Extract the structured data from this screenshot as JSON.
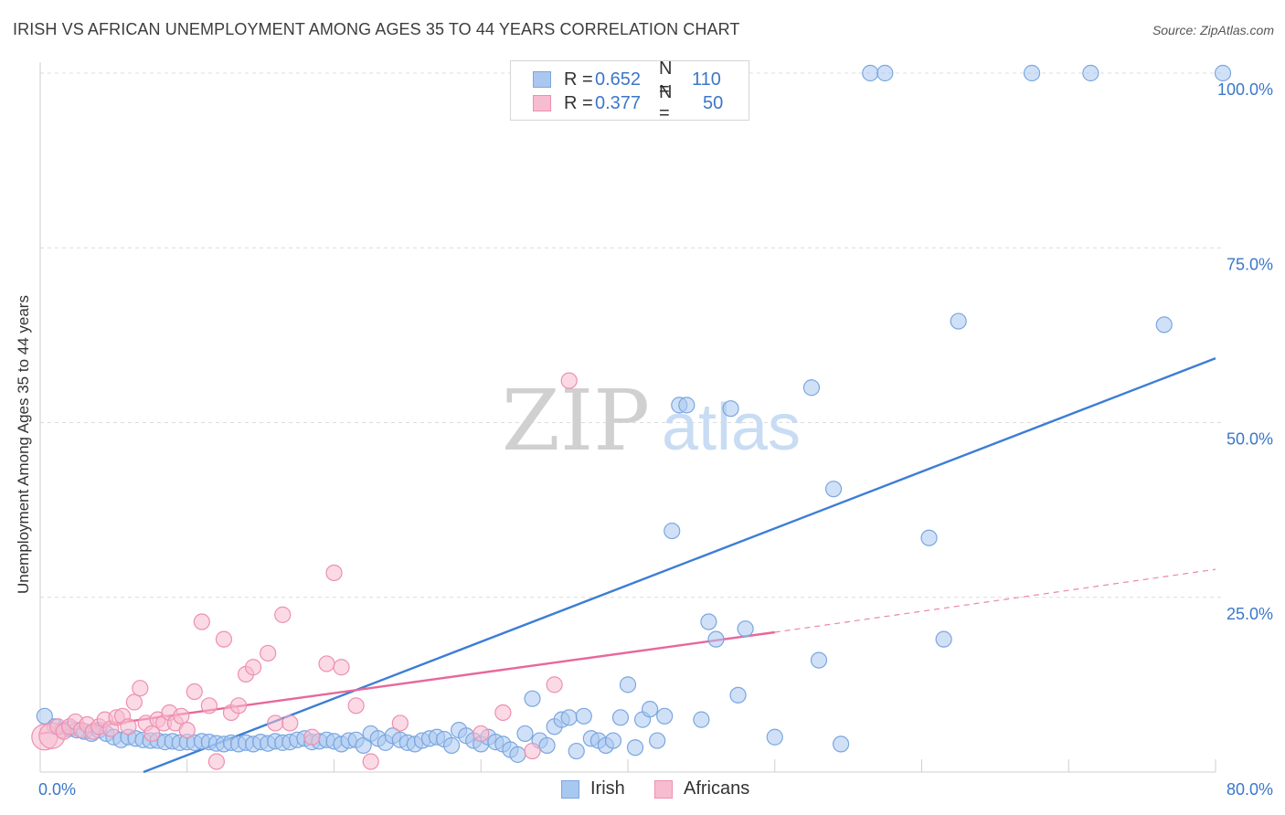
{
  "title": "IRISH VS AFRICAN UNEMPLOYMENT AMONG AGES 35 TO 44 YEARS CORRELATION CHART",
  "source": "Source: ZipAtlas.com",
  "watermark": {
    "zip": "ZIP",
    "atlas": "atlas"
  },
  "legend": {
    "r_label": "R =",
    "n_label": "N =",
    "series": [
      {
        "name": "Irish",
        "r": "0.652",
        "n": "110",
        "fill": "#a9c8f0",
        "stroke": "#7aa6e0"
      },
      {
        "name": "Africans",
        "r": "0.377",
        "n": "50",
        "fill": "#f7bcd0",
        "stroke": "#ee8fb0"
      }
    ]
  },
  "chart_data": {
    "type": "scatter",
    "title": "IRISH VS AFRICAN UNEMPLOYMENT AMONG AGES 35 TO 44 YEARS CORRELATION CHART",
    "xlabel": "",
    "ylabel": "Unemployment Among Ages 35 to 44 years",
    "xlim": [
      0,
      80
    ],
    "ylim": [
      0,
      100
    ],
    "x_tick_labels": [
      {
        "value": 0,
        "label": "0.0%"
      },
      {
        "value": 80,
        "label": "80.0%"
      }
    ],
    "y_tick_labels": [
      {
        "value": 25,
        "label": "25.0%"
      },
      {
        "value": 50,
        "label": "50.0%"
      },
      {
        "value": 75,
        "label": "75.0%"
      },
      {
        "value": 100,
        "label": "100.0%"
      }
    ],
    "grid": true,
    "series": [
      {
        "name": "Irish",
        "color": "#3d7dd6",
        "fill": "#a9c8f0",
        "stroke": "#7aa6e0",
        "points": [
          [
            0.3,
            8.0
          ],
          [
            1.0,
            6.5
          ],
          [
            1.5,
            6.0
          ],
          [
            2.0,
            6.2
          ],
          [
            2.5,
            6.0
          ],
          [
            3.0,
            5.8
          ],
          [
            3.5,
            5.5
          ],
          [
            4.0,
            6.0
          ],
          [
            4.5,
            5.5
          ],
          [
            5.0,
            5.0
          ],
          [
            5.5,
            4.6
          ],
          [
            6.0,
            5.0
          ],
          [
            6.5,
            4.8
          ],
          [
            7.0,
            4.6
          ],
          [
            7.5,
            4.5
          ],
          [
            8.0,
            4.5
          ],
          [
            8.5,
            4.3
          ],
          [
            9.0,
            4.4
          ],
          [
            9.5,
            4.2
          ],
          [
            10.0,
            4.3
          ],
          [
            10.5,
            4.2
          ],
          [
            11.0,
            4.4
          ],
          [
            11.5,
            4.3
          ],
          [
            12.0,
            4.1
          ],
          [
            12.5,
            4.0
          ],
          [
            13.0,
            4.2
          ],
          [
            13.5,
            4.0
          ],
          [
            14.0,
            4.2
          ],
          [
            14.5,
            4.0
          ],
          [
            15.0,
            4.3
          ],
          [
            15.5,
            4.1
          ],
          [
            16.0,
            4.4
          ],
          [
            16.5,
            4.2
          ],
          [
            17.0,
            4.3
          ],
          [
            17.5,
            4.6
          ],
          [
            18.0,
            4.8
          ],
          [
            18.5,
            4.3
          ],
          [
            19.0,
            4.4
          ],
          [
            19.5,
            4.6
          ],
          [
            20.0,
            4.4
          ],
          [
            20.5,
            4.0
          ],
          [
            21.0,
            4.5
          ],
          [
            21.5,
            4.6
          ],
          [
            22.0,
            3.8
          ],
          [
            22.5,
            5.5
          ],
          [
            23.0,
            4.8
          ],
          [
            23.5,
            4.2
          ],
          [
            24.0,
            5.2
          ],
          [
            24.5,
            4.6
          ],
          [
            25.0,
            4.2
          ],
          [
            25.5,
            4.0
          ],
          [
            26.0,
            4.5
          ],
          [
            26.5,
            4.8
          ],
          [
            27.0,
            5.0
          ],
          [
            27.5,
            4.7
          ],
          [
            28.0,
            3.8
          ],
          [
            28.5,
            6.0
          ],
          [
            29.0,
            5.2
          ],
          [
            29.5,
            4.5
          ],
          [
            30.0,
            4.0
          ],
          [
            30.5,
            5.0
          ],
          [
            31.0,
            4.3
          ],
          [
            31.5,
            4.0
          ],
          [
            32.0,
            3.2
          ],
          [
            32.5,
            2.5
          ],
          [
            33.0,
            5.5
          ],
          [
            33.5,
            10.5
          ],
          [
            34.0,
            4.5
          ],
          [
            34.5,
            3.8
          ],
          [
            35.0,
            6.5
          ],
          [
            35.5,
            7.5
          ],
          [
            36.0,
            7.8
          ],
          [
            36.5,
            3.0
          ],
          [
            37.0,
            8.0
          ],
          [
            37.5,
            4.8
          ],
          [
            38.0,
            4.5
          ],
          [
            38.5,
            3.8
          ],
          [
            39.0,
            4.5
          ],
          [
            39.5,
            7.8
          ],
          [
            40.0,
            12.5
          ],
          [
            40.5,
            3.5
          ],
          [
            41.0,
            7.5
          ],
          [
            41.5,
            9.0
          ],
          [
            42.0,
            4.5
          ],
          [
            42.5,
            8.0
          ],
          [
            43.0,
            34.5
          ],
          [
            43.5,
            52.5
          ],
          [
            44.0,
            52.5
          ],
          [
            45.0,
            7.5
          ],
          [
            45.5,
            21.5
          ],
          [
            46.0,
            19.0
          ],
          [
            47.0,
            52.0
          ],
          [
            47.5,
            11.0
          ],
          [
            48.0,
            20.5
          ],
          [
            50.0,
            5.0
          ],
          [
            52.5,
            55.0
          ],
          [
            53.0,
            16.0
          ],
          [
            54.0,
            40.5
          ],
          [
            54.5,
            4.0
          ],
          [
            56.5,
            100
          ],
          [
            57.5,
            100
          ],
          [
            60.5,
            33.5
          ],
          [
            61.5,
            19.0
          ],
          [
            62.5,
            64.5
          ],
          [
            67.5,
            100
          ],
          [
            71.5,
            100
          ],
          [
            76.5,
            64.0
          ],
          [
            80.5,
            100
          ]
        ]
      },
      {
        "name": "Africans",
        "color": "#e8679a",
        "fill": "#f7bcd0",
        "stroke": "#ee8fb0",
        "points": [
          [
            0.3,
            5.0
          ],
          [
            0.8,
            5.2
          ],
          [
            1.2,
            6.5
          ],
          [
            1.6,
            5.8
          ],
          [
            2.0,
            6.5
          ],
          [
            2.4,
            7.2
          ],
          [
            2.8,
            6.0
          ],
          [
            3.2,
            6.8
          ],
          [
            3.6,
            5.8
          ],
          [
            4.0,
            6.5
          ],
          [
            4.4,
            7.5
          ],
          [
            4.8,
            6.2
          ],
          [
            5.2,
            7.8
          ],
          [
            5.6,
            8.0
          ],
          [
            6.0,
            6.5
          ],
          [
            6.4,
            10.0
          ],
          [
            6.8,
            12.0
          ],
          [
            7.2,
            7.0
          ],
          [
            7.6,
            5.5
          ],
          [
            8.0,
            7.5
          ],
          [
            8.4,
            7.0
          ],
          [
            8.8,
            8.5
          ],
          [
            9.2,
            7.0
          ],
          [
            9.6,
            8.0
          ],
          [
            10.0,
            6.0
          ],
          [
            10.5,
            11.5
          ],
          [
            11.0,
            21.5
          ],
          [
            11.5,
            9.5
          ],
          [
            12.0,
            1.5
          ],
          [
            12.5,
            19.0
          ],
          [
            13.0,
            8.5
          ],
          [
            13.5,
            9.5
          ],
          [
            14.0,
            14.0
          ],
          [
            14.5,
            15.0
          ],
          [
            15.5,
            17.0
          ],
          [
            16.0,
            7.0
          ],
          [
            16.5,
            22.5
          ],
          [
            17.0,
            7.0
          ],
          [
            18.5,
            5.0
          ],
          [
            19.5,
            15.5
          ],
          [
            20.0,
            28.5
          ],
          [
            20.5,
            15.0
          ],
          [
            21.5,
            9.5
          ],
          [
            22.5,
            1.5
          ],
          [
            24.5,
            7.0
          ],
          [
            30.0,
            5.5
          ],
          [
            31.5,
            8.5
          ],
          [
            33.5,
            3.0
          ],
          [
            35.0,
            12.5
          ],
          [
            36.0,
            56.0
          ]
        ]
      }
    ],
    "trend_lines": [
      {
        "series": "Irish",
        "from": [
          0,
          -5.7
        ],
        "to": [
          80,
          59.2
        ],
        "style": "solid"
      },
      {
        "series": "Africans",
        "from": [
          0,
          5.5
        ],
        "to": [
          50,
          20.0
        ],
        "style": "solid"
      },
      {
        "series": "Africans",
        "from": [
          50,
          20.0
        ],
        "to": [
          80,
          29.0
        ],
        "style": "dashed"
      }
    ]
  }
}
